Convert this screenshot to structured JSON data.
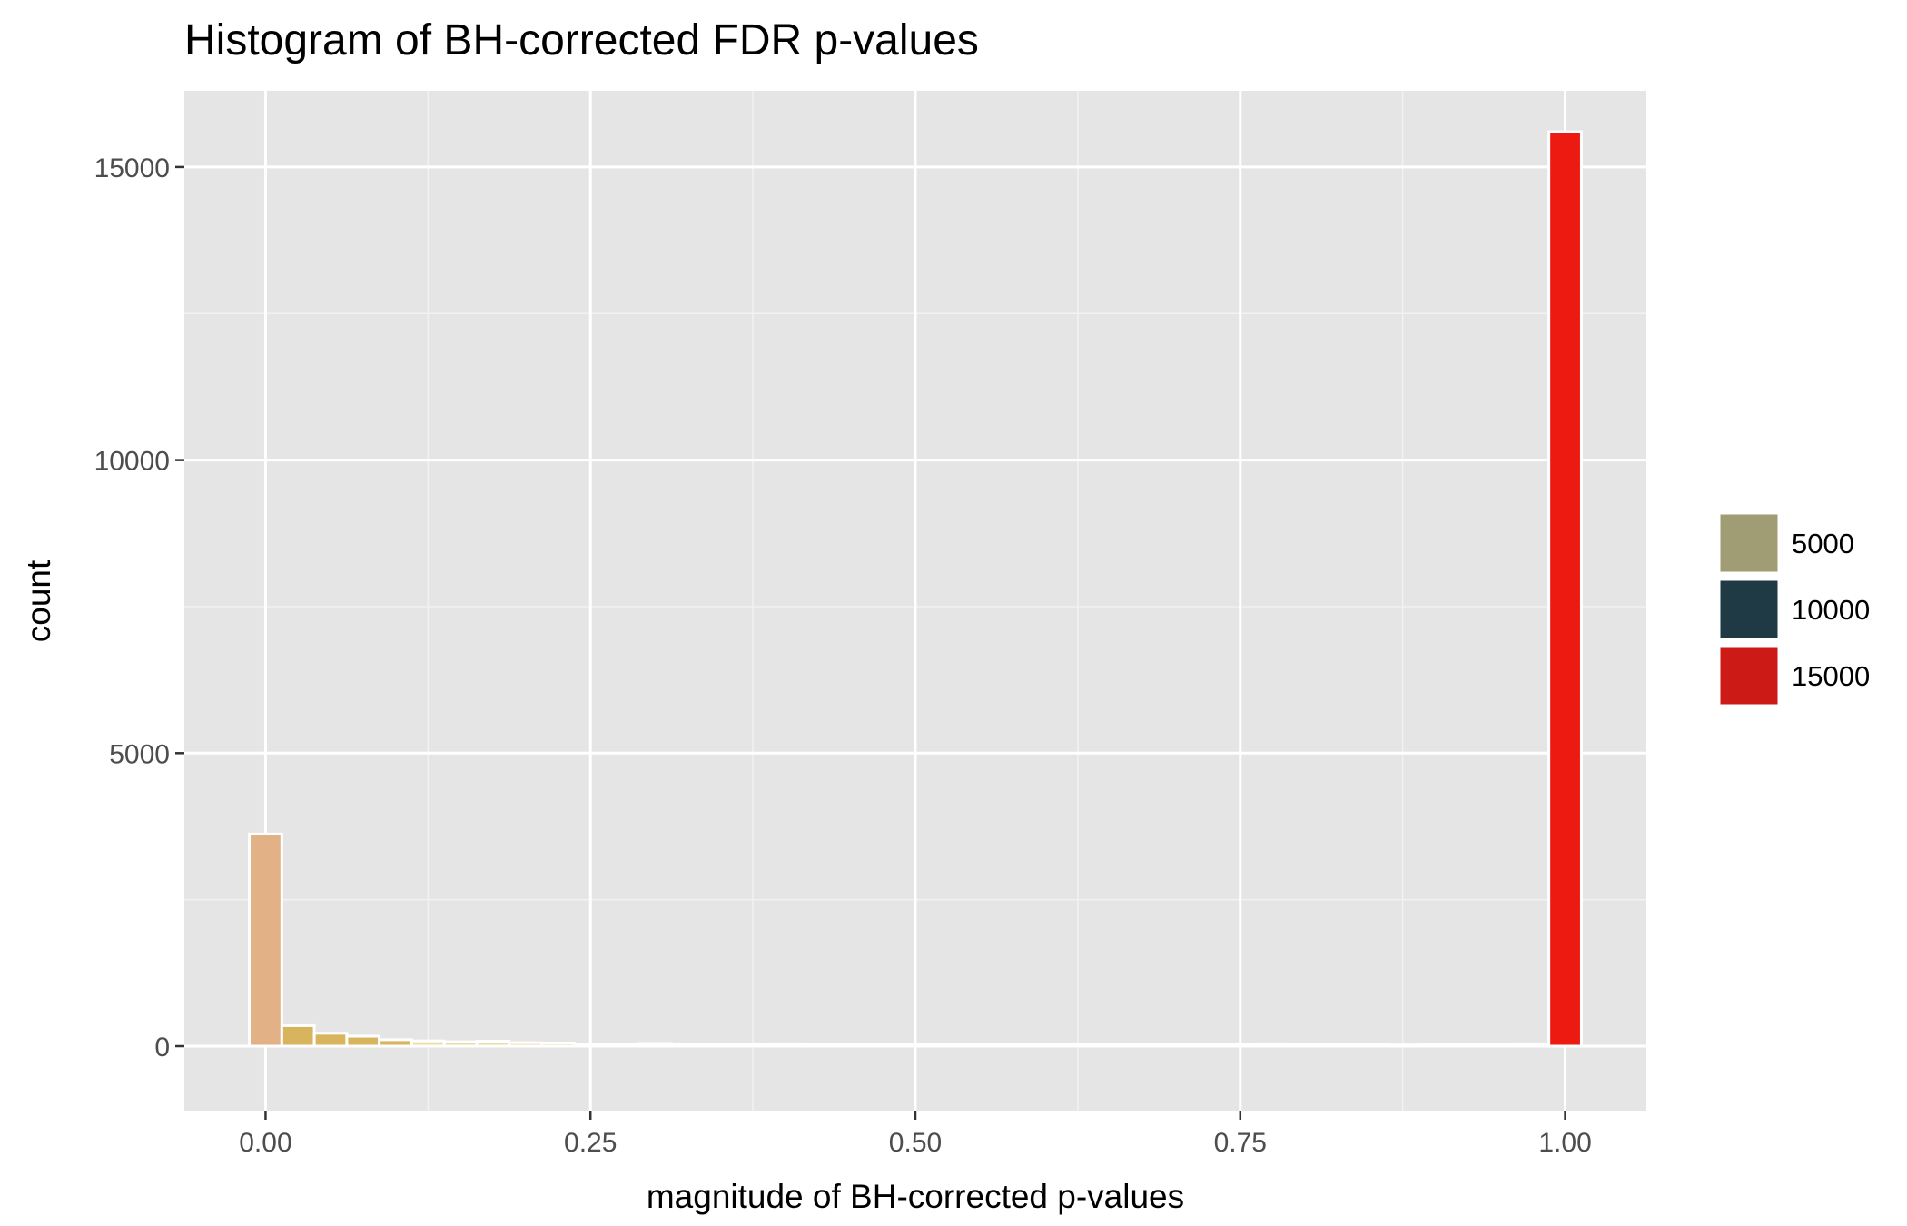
{
  "chart_data": {
    "type": "bar",
    "title": "Histogram of BH-corrected FDR p-values",
    "xlabel": "magnitude of BH-corrected p-values",
    "ylabel": "count",
    "xlim": [
      -0.0625,
      1.0625
    ],
    "ylim": [
      -1100,
      16300
    ],
    "x_ticks": [
      0,
      0.25,
      0.5,
      0.75,
      1
    ],
    "x_tick_labels": [
      "0.00",
      "0.25",
      "0.50",
      "0.75",
      "1.00"
    ],
    "y_ticks": [
      0,
      5000,
      10000,
      15000
    ],
    "y_tick_labels": [
      "0",
      "5000",
      "10000",
      "15000"
    ],
    "grid": true,
    "bin_width": 0.025,
    "x": [
      0,
      0.025,
      0.05,
      0.075,
      0.1,
      0.125,
      0.15,
      0.175,
      0.2,
      0.225,
      0.25,
      0.275,
      0.3,
      0.325,
      0.35,
      0.375,
      0.4,
      0.425,
      0.45,
      0.475,
      0.5,
      0.525,
      0.55,
      0.575,
      0.6,
      0.625,
      0.65,
      0.675,
      0.7,
      0.725,
      0.75,
      0.775,
      0.8,
      0.825,
      0.85,
      0.875,
      0.9,
      0.925,
      0.95,
      0.975,
      1
    ],
    "values": [
      3620,
      350,
      220,
      170,
      110,
      90,
      75,
      85,
      60,
      55,
      35,
      30,
      45,
      30,
      35,
      30,
      40,
      35,
      30,
      35,
      35,
      30,
      35,
      30,
      25,
      25,
      30,
      25,
      25,
      25,
      35,
      40,
      30,
      25,
      25,
      20,
      25,
      30,
      25,
      40,
      15600
    ],
    "legend": {
      "position": "right",
      "entries": [
        {
          "label": "5000",
          "color": "#a09c74"
        },
        {
          "label": "10000",
          "color": "#1f3a44"
        },
        {
          "label": "15000",
          "color": "#cc1a16"
        }
      ]
    },
    "bar_colors": {
      "low": "#eedca8",
      "mid": "#d9b45e",
      "first": "#e2b185",
      "high": "#ec1a10"
    }
  }
}
